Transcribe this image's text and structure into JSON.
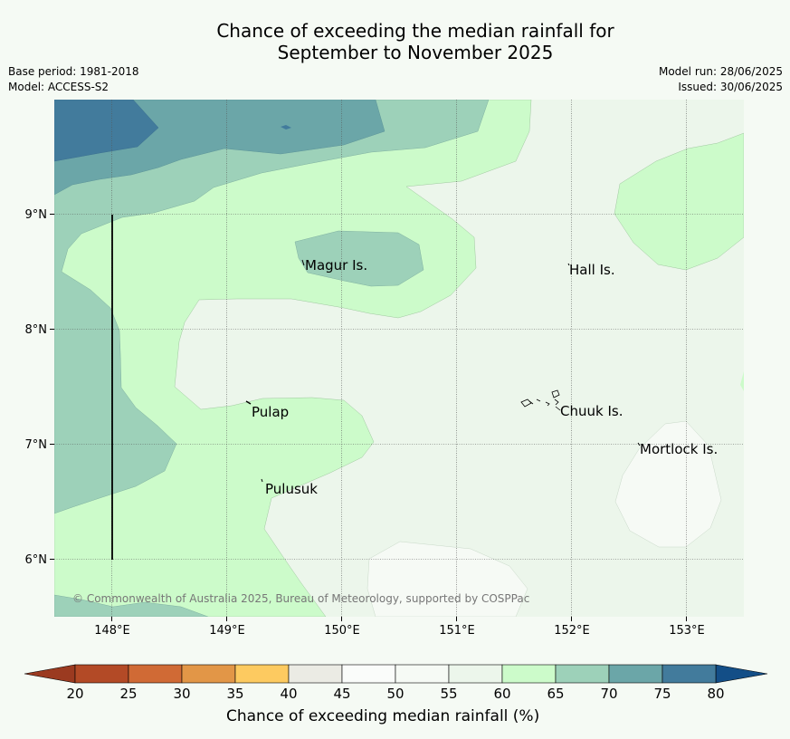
{
  "title": {
    "line1": "Chance of exceeding the median rainfall for",
    "line2": "September to November 2025"
  },
  "meta": {
    "base_period": "Base period: 1981-2018",
    "model": "Model: ACCESS-S2",
    "model_run": "Model run: 28/06/2025",
    "issued": "Issued: 30/06/2025"
  },
  "map": {
    "lat_ticks": [
      "9°N",
      "8°N",
      "7°N",
      "6°N"
    ],
    "lon_ticks": [
      "148°E",
      "149°E",
      "150°E",
      "151°E",
      "152°E",
      "153°E"
    ],
    "places": {
      "magur": "Magur Is.",
      "hall": "Hall Is.",
      "pulap": "Pulap",
      "chuuk": "Chuuk Is.",
      "mortlock": "Mortlock Is.",
      "pulusuk": "Pulusuk"
    },
    "copyright": "© Commonwealth of Australia 2025, Bureau of Meteorology, supported by COSPPac"
  },
  "colorbar": {
    "ticks": [
      "20",
      "25",
      "30",
      "35",
      "40",
      "45",
      "50",
      "55",
      "60",
      "65",
      "70",
      "75",
      "80"
    ],
    "colors": [
      "#b34a26",
      "#d06a35",
      "#e29647",
      "#fdca60",
      "#ebebe4",
      "#fafcfa",
      "#f6faf5",
      "#ecf6eb",
      "#ccfbca",
      "#9dd1b9",
      "#6ba6a8",
      "#427b9c"
    ],
    "under_color": "#9b3a20",
    "over_color": "#134e87",
    "label": "Chance of exceeding median rainfall (%)"
  }
}
